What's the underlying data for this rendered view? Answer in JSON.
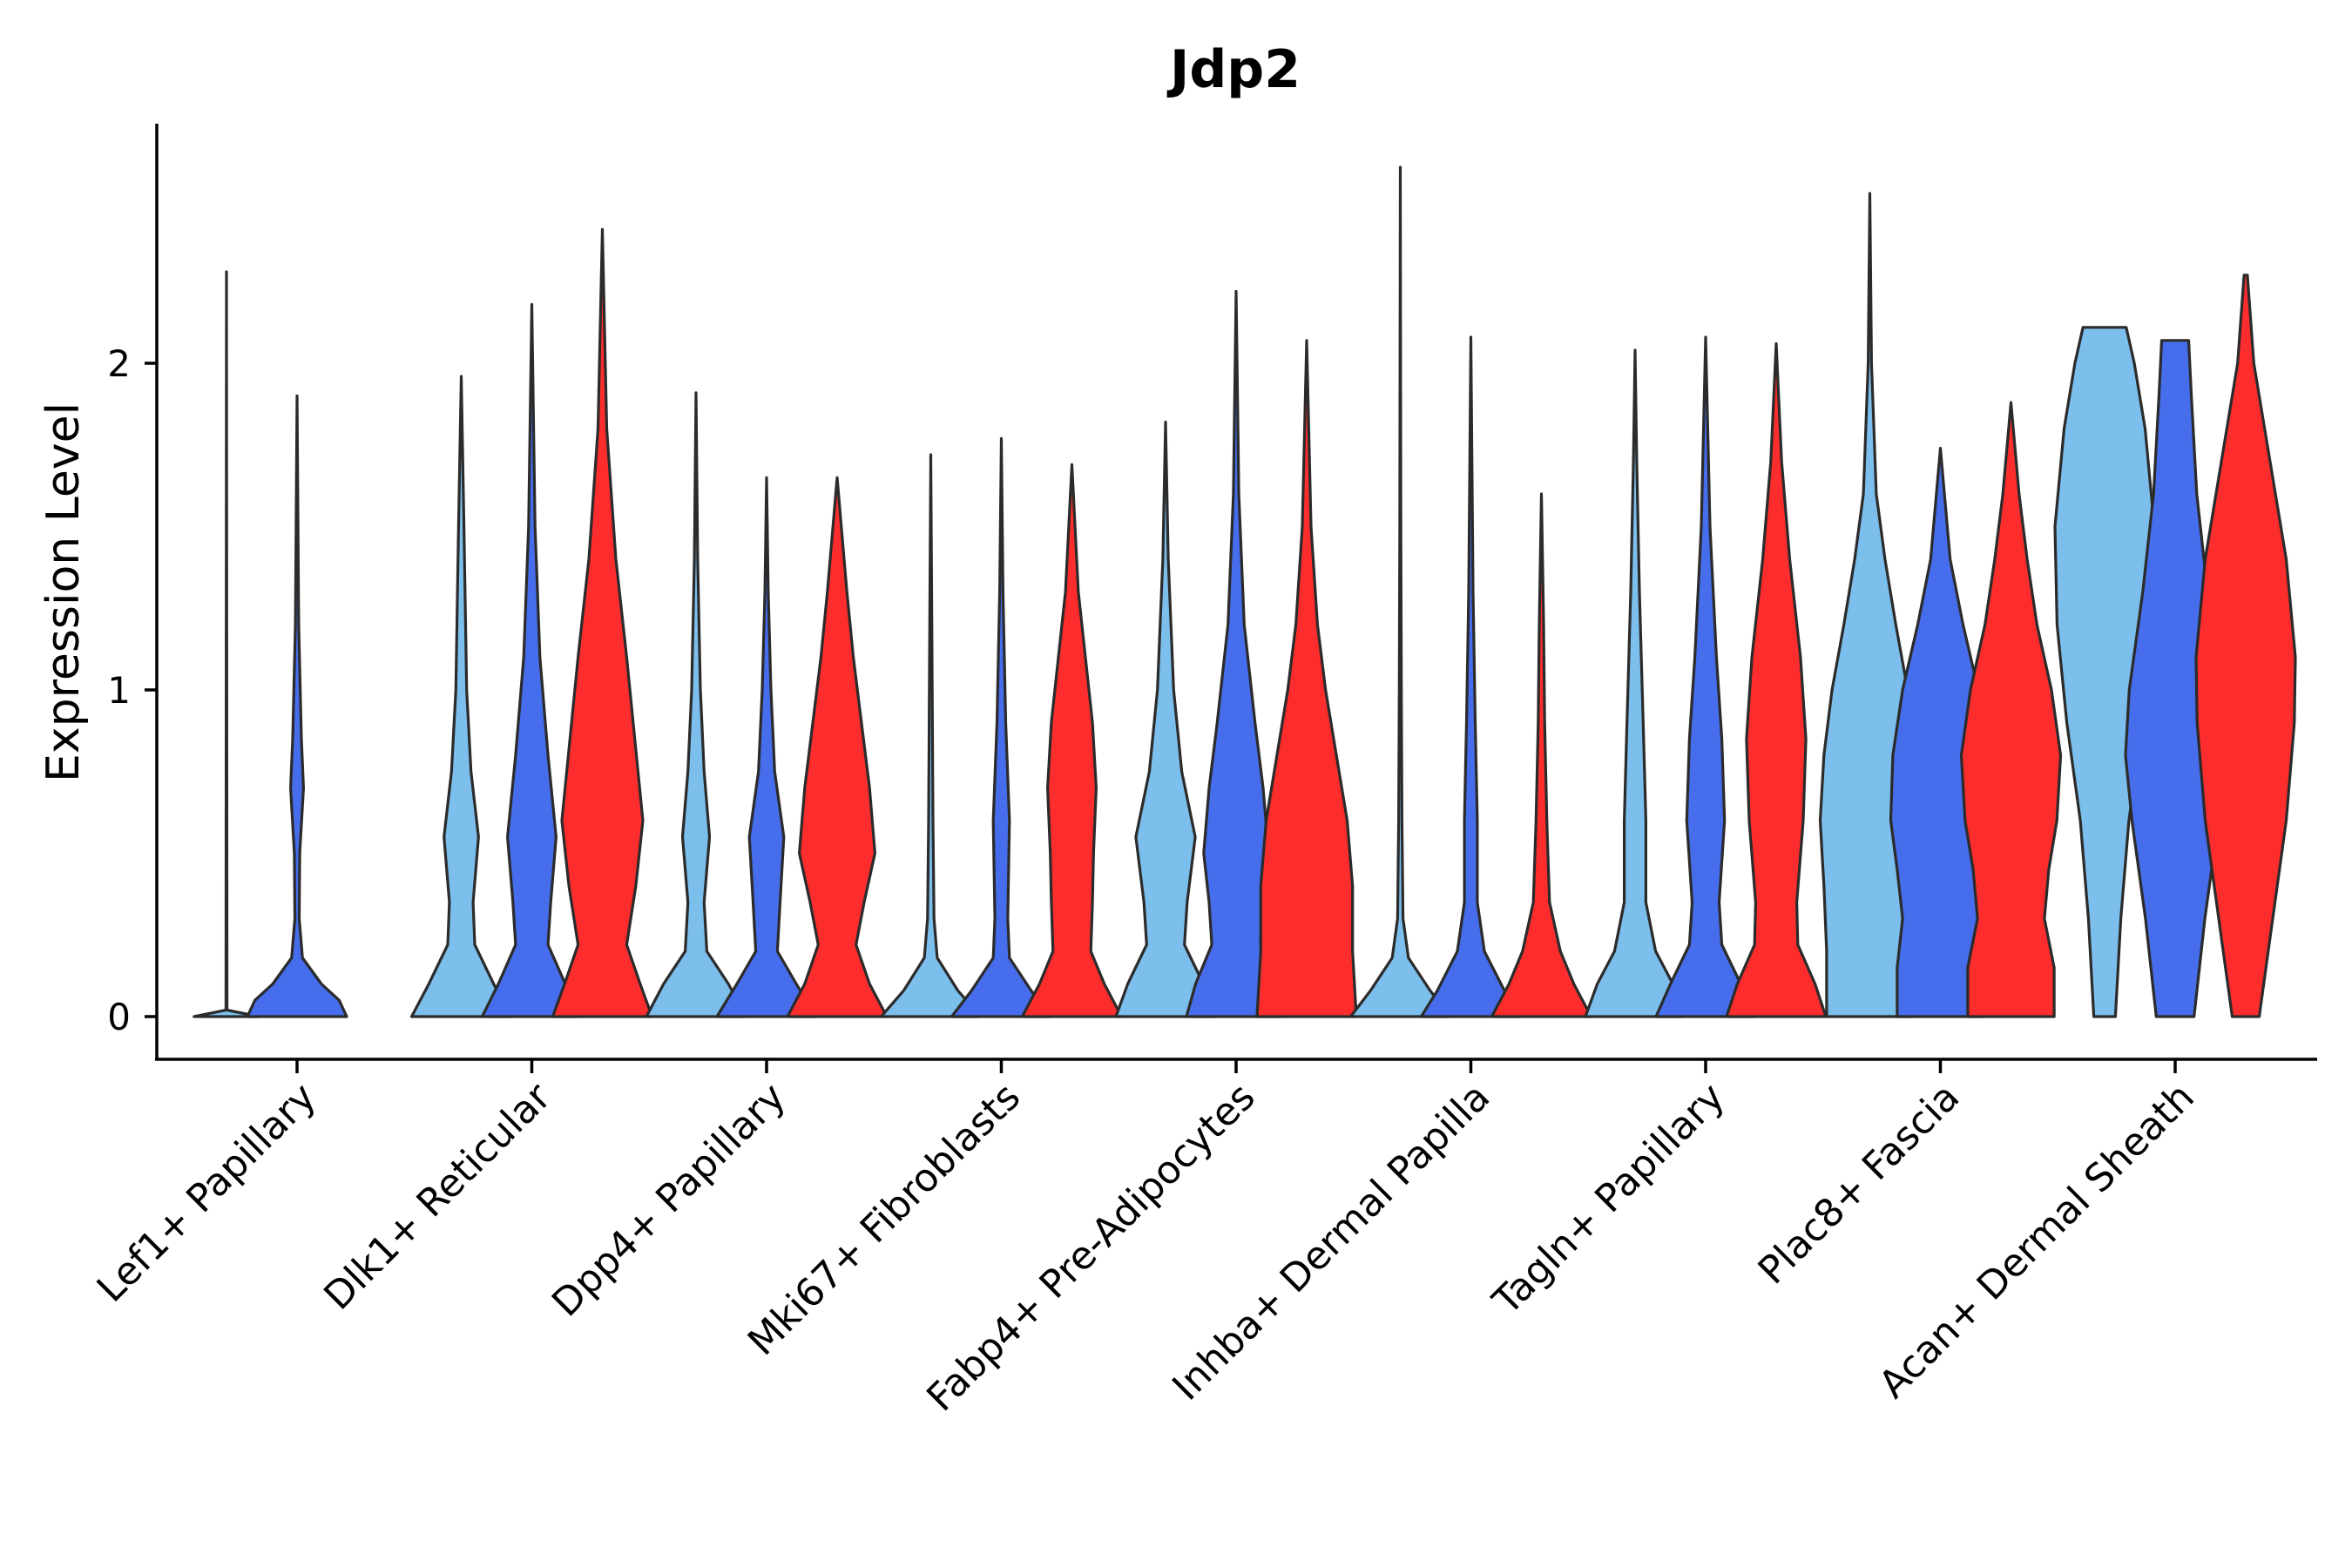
{
  "chart_data": {
    "type": "violin",
    "title": "Jdp2",
    "xlabel": "",
    "ylabel": "Expression Level",
    "ylim": [
      -0.13,
      2.75
    ],
    "yticks": [
      0,
      1,
      2
    ],
    "grid": false,
    "legend": "none",
    "colors": {
      "group_a": "#7dbfec",
      "group_b": "#466eec",
      "group_c": "#fe2d2d"
    },
    "categories": [
      "Lef1+ Papillary",
      "Dlk1+ Reticular",
      "Dpp4+ Papillary",
      "Mki67+ Fibroblasts",
      "Fabp4+ Pre-Adipocytes",
      "Inhba+ Dermal Papilla",
      "Tagln+ Papillary",
      "Plac8+ Fascia",
      "Acan+ Dermal Sheath"
    ],
    "violins": [
      {
        "category": "Lef1+ Papillary",
        "group": "group_a",
        "color": "#7dbfec",
        "max": 2.28,
        "profile": [
          [
            0,
            0.6
          ],
          [
            0.02,
            0.01
          ],
          [
            2.28,
            0
          ]
        ]
      },
      {
        "category": "Lef1+ Papillary",
        "group": "group_b",
        "color": "#466eec",
        "max": 1.9,
        "profile": [
          [
            0,
            0.92
          ],
          [
            0.05,
            0.78
          ],
          [
            0.1,
            0.45
          ],
          [
            0.18,
            0.1
          ],
          [
            0.3,
            0.04
          ],
          [
            0.5,
            0.05
          ],
          [
            0.7,
            0.12
          ],
          [
            0.85,
            0.08
          ],
          [
            1.2,
            0.03
          ],
          [
            1.9,
            0
          ]
        ]
      },
      {
        "category": "Dlk1+ Reticular",
        "group": "group_a",
        "color": "#7dbfec",
        "max": 1.96,
        "profile": [
          [
            0,
            0.92
          ],
          [
            0.1,
            0.6
          ],
          [
            0.22,
            0.25
          ],
          [
            0.35,
            0.22
          ],
          [
            0.55,
            0.32
          ],
          [
            0.75,
            0.18
          ],
          [
            1.0,
            0.1
          ],
          [
            1.5,
            0.05
          ],
          [
            1.96,
            0
          ]
        ]
      },
      {
        "category": "Dlk1+ Reticular",
        "group": "group_b",
        "color": "#466eec",
        "max": 2.18,
        "profile": [
          [
            0,
            0.92
          ],
          [
            0.1,
            0.62
          ],
          [
            0.22,
            0.3
          ],
          [
            0.35,
            0.35
          ],
          [
            0.55,
            0.45
          ],
          [
            0.8,
            0.3
          ],
          [
            1.1,
            0.15
          ],
          [
            1.5,
            0.06
          ],
          [
            2.18,
            0
          ]
        ]
      },
      {
        "category": "Dlk1+ Reticular",
        "group": "group_c",
        "color": "#fe2d2d",
        "max": 2.41,
        "profile": [
          [
            0,
            0.92
          ],
          [
            0.1,
            0.7
          ],
          [
            0.22,
            0.45
          ],
          [
            0.4,
            0.62
          ],
          [
            0.6,
            0.75
          ],
          [
            0.85,
            0.6
          ],
          [
            1.1,
            0.45
          ],
          [
            1.4,
            0.25
          ],
          [
            1.8,
            0.08
          ],
          [
            2.41,
            0
          ]
        ]
      },
      {
        "category": "Dpp4+ Papillary",
        "group": "group_a",
        "color": "#7dbfec",
        "max": 1.91,
        "profile": [
          [
            0,
            0.92
          ],
          [
            0.1,
            0.6
          ],
          [
            0.2,
            0.2
          ],
          [
            0.35,
            0.15
          ],
          [
            0.55,
            0.25
          ],
          [
            0.75,
            0.15
          ],
          [
            1.0,
            0.08
          ],
          [
            1.4,
            0.03
          ],
          [
            1.91,
            0
          ]
        ]
      },
      {
        "category": "Dpp4+ Papillary",
        "group": "group_b",
        "color": "#466eec",
        "max": 1.65,
        "profile": [
          [
            0,
            0.92
          ],
          [
            0.1,
            0.55
          ],
          [
            0.2,
            0.2
          ],
          [
            0.35,
            0.25
          ],
          [
            0.55,
            0.32
          ],
          [
            0.75,
            0.15
          ],
          [
            1.0,
            0.08
          ],
          [
            1.3,
            0.03
          ],
          [
            1.65,
            0
          ]
        ]
      },
      {
        "category": "Dpp4+ Papillary",
        "group": "group_c",
        "color": "#fe2d2d",
        "max": 1.65,
        "profile": [
          [
            0,
            0.92
          ],
          [
            0.1,
            0.6
          ],
          [
            0.22,
            0.35
          ],
          [
            0.35,
            0.5
          ],
          [
            0.5,
            0.7
          ],
          [
            0.7,
            0.6
          ],
          [
            0.9,
            0.45
          ],
          [
            1.1,
            0.3
          ],
          [
            1.3,
            0.18
          ],
          [
            1.65,
            0
          ]
        ]
      },
      {
        "category": "Mki67+ Fibroblasts",
        "group": "group_a",
        "color": "#7dbfec",
        "max": 1.72,
        "profile": [
          [
            0,
            0.92
          ],
          [
            0.08,
            0.5
          ],
          [
            0.18,
            0.12
          ],
          [
            0.3,
            0.06
          ],
          [
            0.6,
            0.04
          ],
          [
            1.2,
            0.02
          ],
          [
            1.72,
            0
          ]
        ]
      },
      {
        "category": "Mki67+ Fibroblasts",
        "group": "group_b",
        "color": "#466eec",
        "max": 1.77,
        "profile": [
          [
            0,
            0.92
          ],
          [
            0.08,
            0.55
          ],
          [
            0.18,
            0.15
          ],
          [
            0.3,
            0.12
          ],
          [
            0.6,
            0.15
          ],
          [
            0.9,
            0.08
          ],
          [
            1.3,
            0.03
          ],
          [
            1.77,
            0
          ]
        ]
      },
      {
        "category": "Mki67+ Fibroblasts",
        "group": "group_c",
        "color": "#fe2d2d",
        "max": 1.69,
        "profile": [
          [
            0,
            0.92
          ],
          [
            0.1,
            0.6
          ],
          [
            0.2,
            0.35
          ],
          [
            0.35,
            0.38
          ],
          [
            0.5,
            0.4
          ],
          [
            0.7,
            0.45
          ],
          [
            0.9,
            0.38
          ],
          [
            1.1,
            0.25
          ],
          [
            1.3,
            0.12
          ],
          [
            1.69,
            0
          ]
        ]
      },
      {
        "category": "Fabp4+ Pre-Adipocytes",
        "group": "group_a",
        "color": "#7dbfec",
        "max": 1.82,
        "profile": [
          [
            0,
            0.92
          ],
          [
            0.1,
            0.7
          ],
          [
            0.22,
            0.35
          ],
          [
            0.35,
            0.4
          ],
          [
            0.55,
            0.55
          ],
          [
            0.75,
            0.3
          ],
          [
            1.0,
            0.15
          ],
          [
            1.4,
            0.05
          ],
          [
            1.82,
            0
          ]
        ]
      },
      {
        "category": "Fabp4+ Pre-Adipocytes",
        "group": "group_b",
        "color": "#466eec",
        "max": 2.22,
        "profile": [
          [
            0,
            0.92
          ],
          [
            0.1,
            0.75
          ],
          [
            0.22,
            0.45
          ],
          [
            0.35,
            0.5
          ],
          [
            0.5,
            0.6
          ],
          [
            0.7,
            0.5
          ],
          [
            0.9,
            0.35
          ],
          [
            1.2,
            0.15
          ],
          [
            1.6,
            0.05
          ],
          [
            2.22,
            0
          ]
        ]
      },
      {
        "category": "Fabp4+ Pre-Adipocytes",
        "group": "group_c",
        "color": "#fe2d2d",
        "max": 2.07,
        "profile": [
          [
            0,
            0.92
          ],
          [
            0.2,
            0.85
          ],
          [
            0.4,
            0.85
          ],
          [
            0.6,
            0.75
          ],
          [
            0.8,
            0.55
          ],
          [
            1.0,
            0.35
          ],
          [
            1.2,
            0.2
          ],
          [
            1.5,
            0.08
          ],
          [
            2.07,
            0
          ]
        ]
      },
      {
        "category": "Inhba+ Dermal Papilla",
        "group": "group_a",
        "color": "#7dbfec",
        "max": 2.6,
        "profile": [
          [
            0,
            0.92
          ],
          [
            0.08,
            0.55
          ],
          [
            0.18,
            0.15
          ],
          [
            0.3,
            0.05
          ],
          [
            0.6,
            0.03
          ],
          [
            1.0,
            0.02
          ],
          [
            1.5,
            0.01
          ],
          [
            2.6,
            0
          ]
        ]
      },
      {
        "category": "Inhba+ Dermal Papilla",
        "group": "group_b",
        "color": "#466eec",
        "max": 2.08,
        "profile": [
          [
            0,
            0.92
          ],
          [
            0.08,
            0.62
          ],
          [
            0.2,
            0.25
          ],
          [
            0.35,
            0.12
          ],
          [
            0.6,
            0.12
          ],
          [
            0.9,
            0.08
          ],
          [
            1.3,
            0.04
          ],
          [
            2.08,
            0
          ]
        ]
      },
      {
        "category": "Inhba+ Dermal Papilla",
        "group": "group_c",
        "color": "#fe2d2d",
        "max": 1.6,
        "profile": [
          [
            0,
            0.92
          ],
          [
            0.1,
            0.6
          ],
          [
            0.2,
            0.35
          ],
          [
            0.35,
            0.15
          ],
          [
            0.6,
            0.1
          ],
          [
            0.9,
            0.06
          ],
          [
            1.2,
            0.04
          ],
          [
            1.6,
            0
          ]
        ]
      },
      {
        "category": "Tagln+ Papillary",
        "group": "group_a",
        "color": "#7dbfec",
        "max": 2.04,
        "profile": [
          [
            0,
            0.92
          ],
          [
            0.1,
            0.7
          ],
          [
            0.2,
            0.38
          ],
          [
            0.35,
            0.2
          ],
          [
            0.6,
            0.2
          ],
          [
            0.9,
            0.15
          ],
          [
            1.3,
            0.08
          ],
          [
            1.7,
            0.03
          ],
          [
            2.04,
            0
          ]
        ]
      },
      {
        "category": "Tagln+ Papillary",
        "group": "group_b",
        "color": "#466eec",
        "max": 2.08,
        "profile": [
          [
            0,
            0.92
          ],
          [
            0.1,
            0.65
          ],
          [
            0.22,
            0.3
          ],
          [
            0.35,
            0.25
          ],
          [
            0.6,
            0.35
          ],
          [
            0.85,
            0.3
          ],
          [
            1.1,
            0.2
          ],
          [
            1.5,
            0.08
          ],
          [
            2.08,
            0
          ]
        ]
      },
      {
        "category": "Tagln+ Papillary",
        "group": "group_c",
        "color": "#fe2d2d",
        "max": 2.06,
        "profile": [
          [
            0,
            0.92
          ],
          [
            0.1,
            0.72
          ],
          [
            0.22,
            0.4
          ],
          [
            0.35,
            0.38
          ],
          [
            0.6,
            0.5
          ],
          [
            0.85,
            0.55
          ],
          [
            1.1,
            0.45
          ],
          [
            1.4,
            0.25
          ],
          [
            1.7,
            0.1
          ],
          [
            2.06,
            0
          ]
        ]
      },
      {
        "category": "Plac8+ Fascia",
        "group": "group_a",
        "color": "#7dbfec",
        "max": 2.52,
        "profile": [
          [
            0,
            0.8
          ],
          [
            0.2,
            0.8
          ],
          [
            0.4,
            0.85
          ],
          [
            0.6,
            0.92
          ],
          [
            0.8,
            0.85
          ],
          [
            1.0,
            0.7
          ],
          [
            1.2,
            0.48
          ],
          [
            1.4,
            0.28
          ],
          [
            1.6,
            0.12
          ],
          [
            2.0,
            0.03
          ],
          [
            2.52,
            0
          ]
        ]
      },
      {
        "category": "Plac8+ Fascia",
        "group": "group_b",
        "color": "#466eec",
        "max": 1.74,
        "profile": [
          [
            0,
            0.8
          ],
          [
            0.15,
            0.8
          ],
          [
            0.3,
            0.7
          ],
          [
            0.45,
            0.8
          ],
          [
            0.6,
            0.92
          ],
          [
            0.8,
            0.88
          ],
          [
            1.0,
            0.7
          ],
          [
            1.2,
            0.42
          ],
          [
            1.4,
            0.18
          ],
          [
            1.74,
            0
          ]
        ]
      },
      {
        "category": "Plac8+ Fascia",
        "group": "group_c",
        "color": "#fe2d2d",
        "max": 1.88,
        "profile": [
          [
            0,
            0.8
          ],
          [
            0.15,
            0.8
          ],
          [
            0.3,
            0.62
          ],
          [
            0.45,
            0.7
          ],
          [
            0.6,
            0.85
          ],
          [
            0.8,
            0.92
          ],
          [
            1.0,
            0.75
          ],
          [
            1.2,
            0.48
          ],
          [
            1.4,
            0.3
          ],
          [
            1.6,
            0.15
          ],
          [
            1.88,
            0
          ]
        ]
      },
      {
        "category": "Acan+ Dermal Sheath",
        "group": "group_a",
        "color": "#7dbfec",
        "max": 2.11,
        "profile": [
          [
            0,
            0.2
          ],
          [
            0.3,
            0.3
          ],
          [
            0.6,
            0.45
          ],
          [
            0.9,
            0.7
          ],
          [
            1.2,
            0.88
          ],
          [
            1.5,
            0.92
          ],
          [
            1.8,
            0.75
          ],
          [
            2.0,
            0.55
          ],
          [
            2.11,
            0.4
          ]
        ]
      },
      {
        "category": "Acan+ Dermal Sheath",
        "group": "group_b",
        "color": "#466eec",
        "max": 2.07,
        "profile": [
          [
            0,
            0.35
          ],
          [
            0.3,
            0.55
          ],
          [
            0.6,
            0.8
          ],
          [
            0.8,
            0.92
          ],
          [
            1.0,
            0.85
          ],
          [
            1.3,
            0.6
          ],
          [
            1.6,
            0.4
          ],
          [
            1.9,
            0.3
          ],
          [
            2.07,
            0.25
          ]
        ]
      },
      {
        "category": "Acan+ Dermal Sheath",
        "group": "group_c",
        "color": "#fe2d2d",
        "max": 2.27,
        "profile": [
          [
            0,
            0.25
          ],
          [
            0.3,
            0.5
          ],
          [
            0.6,
            0.75
          ],
          [
            0.9,
            0.9
          ],
          [
            1.1,
            0.92
          ],
          [
            1.4,
            0.75
          ],
          [
            1.7,
            0.45
          ],
          [
            2.0,
            0.15
          ],
          [
            2.27,
            0.03
          ]
        ]
      }
    ]
  }
}
